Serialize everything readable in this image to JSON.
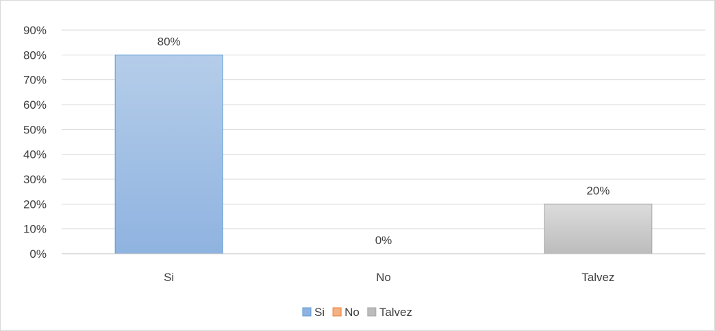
{
  "chart_data": {
    "type": "bar",
    "categories": [
      "Si",
      "No",
      "Talvez"
    ],
    "values": [
      80,
      0,
      20
    ],
    "value_labels": [
      "80%",
      "0%",
      "20%"
    ],
    "ylim": [
      0,
      90
    ],
    "y_ticks": [
      0,
      10,
      20,
      30,
      40,
      50,
      60,
      70,
      80,
      90
    ],
    "y_tick_labels": [
      "0%",
      "10%",
      "20%",
      "30%",
      "40%",
      "50%",
      "60%",
      "70%",
      "80%",
      "90%"
    ],
    "grid": true,
    "legend": {
      "position": "bottom",
      "entries": [
        "Si",
        "No",
        "Talvez"
      ]
    },
    "colors": {
      "Si": {
        "top": "#b5cde9",
        "bottom": "#8fb3e0",
        "stroke": "#5b9bd5"
      },
      "No": {
        "top": "#f8cbad",
        "bottom": "#f4b183",
        "stroke": "#ed7d31"
      },
      "Talvez": {
        "top": "#dcdcdc",
        "bottom": "#bcbcbc",
        "stroke": "#a5a5a5"
      }
    },
    "gridline_color": "#d9d9d9",
    "axis_color": "#bfbfbf",
    "frame_color": "#d9d9d9"
  }
}
